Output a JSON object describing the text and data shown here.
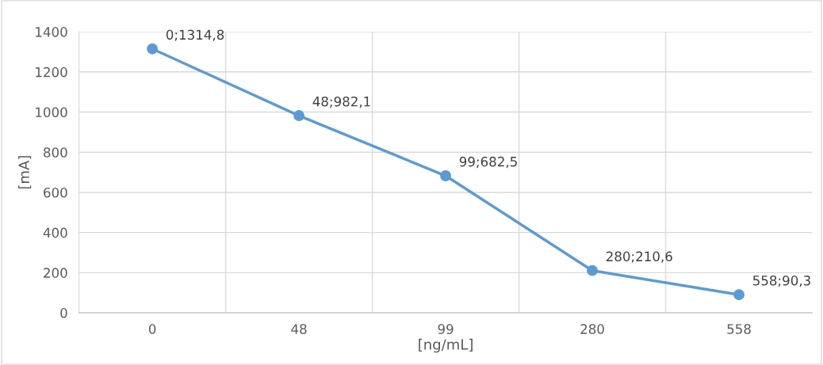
{
  "chart_data": {
    "type": "line",
    "xlabel": "[ng/mL]",
    "ylabel": "[mA]",
    "categories": [
      "0",
      "48",
      "99",
      "280",
      "558"
    ],
    "series": [
      {
        "color": "#5b9bd5",
        "values": [
          1314.8,
          982.1,
          682.5,
          210.6,
          90.3
        ],
        "value_labels": [
          "0;1314,8",
          "48;982,1",
          "99;682,5",
          "280;210,6",
          "558;90,3"
        ]
      }
    ],
    "ylim": [
      0,
      1400
    ],
    "yticks": [
      0,
      200,
      400,
      600,
      800,
      1000,
      1200,
      1400
    ],
    "grid": true,
    "marker": "circle",
    "line_style": "solid"
  }
}
